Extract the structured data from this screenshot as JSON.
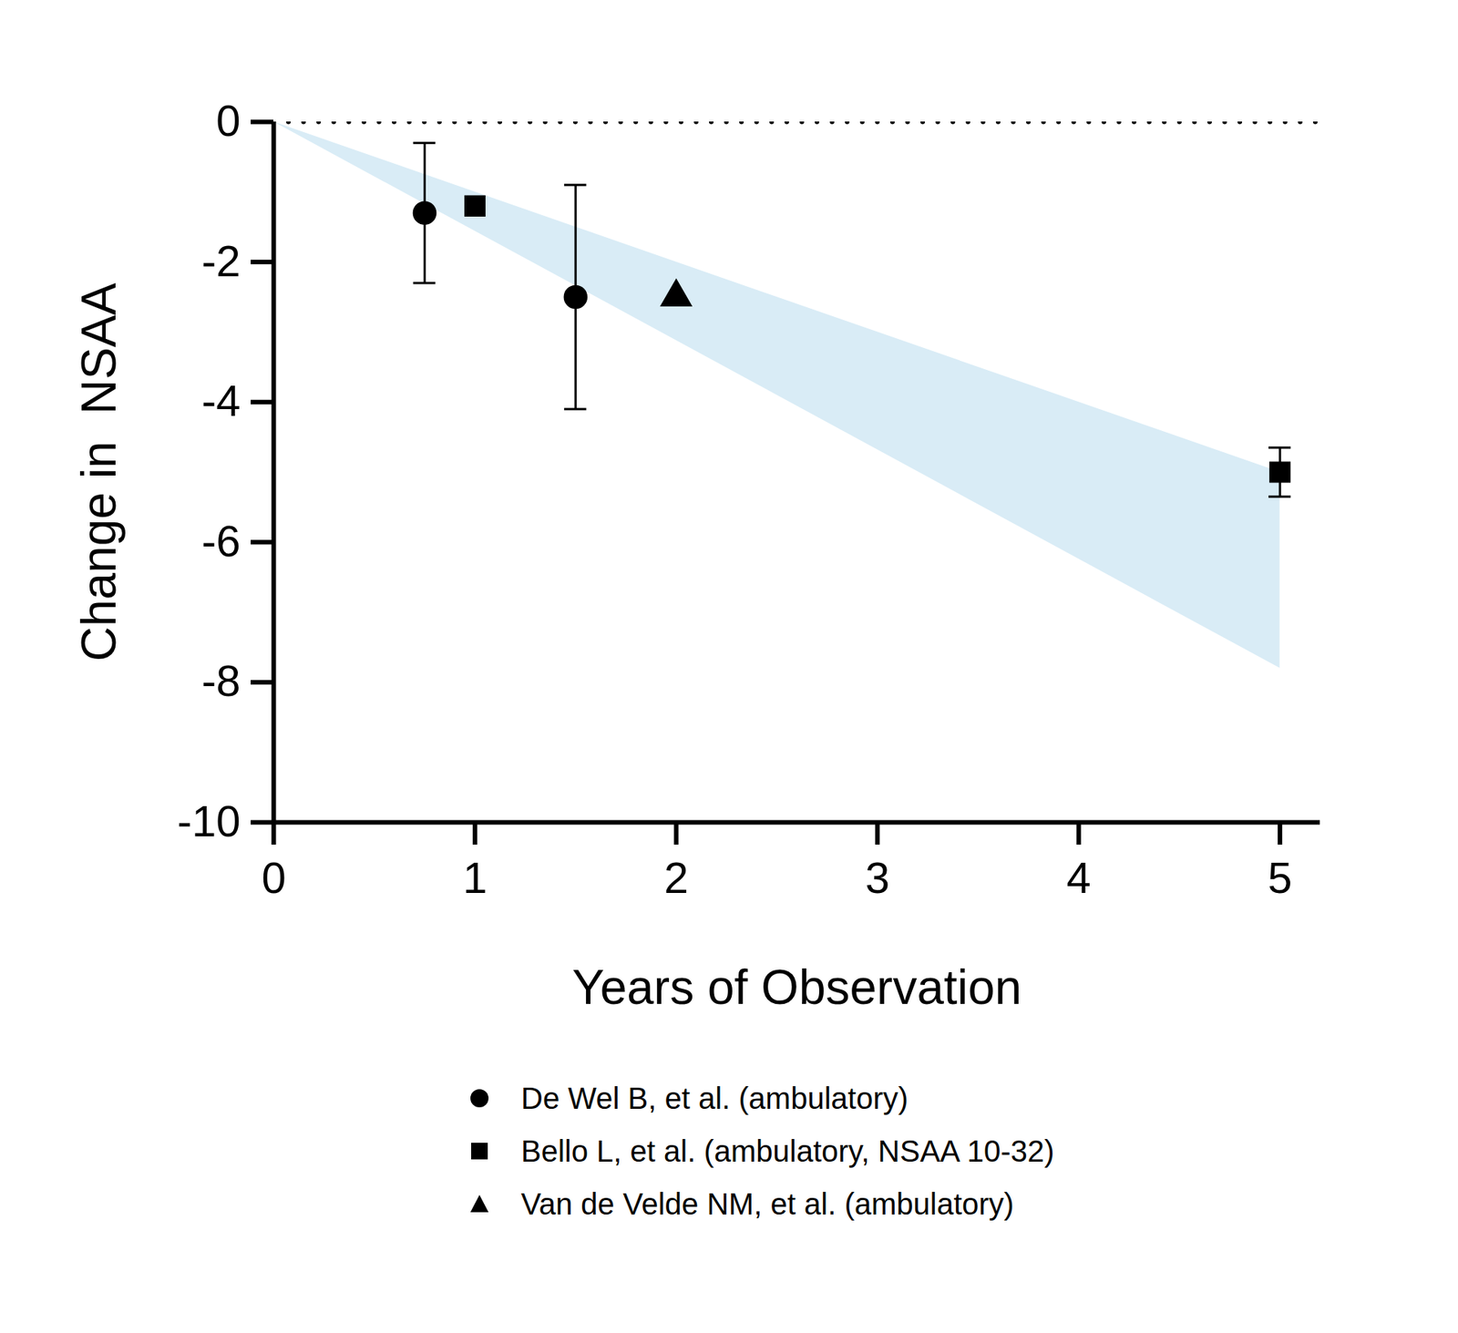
{
  "chart_data": {
    "type": "scatter",
    "x_label": "Years of Observation",
    "y_label": "Change in  NSAA",
    "xlim": [
      0,
      5.2
    ],
    "ylim": [
      -10,
      0
    ],
    "xticks": [
      0,
      1,
      2,
      3,
      4,
      5
    ],
    "yticks": [
      0,
      -2,
      -4,
      -6,
      -8,
      -10
    ],
    "reference_line": 0,
    "band": {
      "color": "#d9ecf6",
      "x": [
        0,
        5
      ],
      "upper": [
        0,
        -5.0
      ],
      "lower": [
        0,
        -7.8
      ]
    },
    "legend": "bottom",
    "series": [
      {
        "name": "De Wel B, et al. (ambulatory)",
        "color": "#000000",
        "marker": "circle",
        "x": [
          0.75,
          1.5
        ],
        "values": [
          -1.3,
          -2.5
        ],
        "error_upper": [
          -0.3,
          -0.9
        ],
        "error_lower": [
          -2.3,
          -4.1
        ]
      },
      {
        "name": "Bello L, et al. (ambulatory, NSAA 10-32)",
        "color": "#000000",
        "marker": "square",
        "x": [
          1,
          5
        ],
        "values": [
          -1.2,
          -5.0
        ],
        "error_upper": [
          null,
          -4.65
        ],
        "error_lower": [
          null,
          -5.35
        ]
      },
      {
        "name": "Van de Velde NM, et al. (ambulatory)",
        "color": "#000000",
        "marker": "triangle",
        "x": [
          2
        ],
        "values": [
          -2.5
        ],
        "error_upper": [
          null
        ],
        "error_lower": [
          null
        ]
      }
    ]
  }
}
